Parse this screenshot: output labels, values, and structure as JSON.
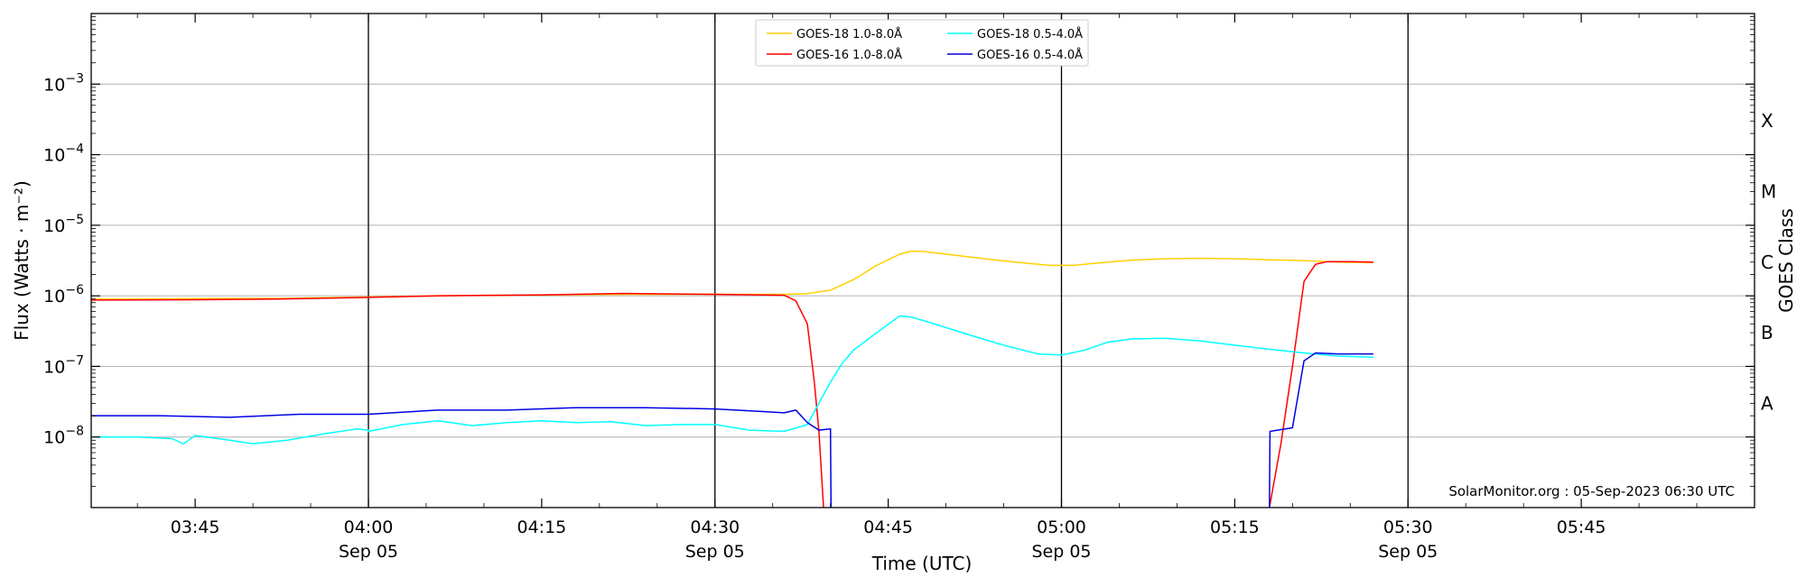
{
  "chart_data": {
    "type": "line",
    "xlabel": "Time (UTC)",
    "ylabel": "Flux (Watts · m⁻²)",
    "right_ylabel": "GOES Class",
    "credit": "SolarMonitor.org : 05-Sep-2023 06:30 UTC",
    "xlim": [
      "2023-09-05 03:36",
      "2023-09-05 06:00"
    ],
    "ylim": [
      1e-09,
      0.01
    ],
    "yscale": "log",
    "grid": "horizontal at decades",
    "legend_position": "top-center",
    "x_ticks": [
      {
        "time": "03:45",
        "label": "03:45",
        "date": ""
      },
      {
        "time": "04:00",
        "label": "04:00",
        "date": "Sep 05"
      },
      {
        "time": "04:15",
        "label": "04:15",
        "date": ""
      },
      {
        "time": "04:30",
        "label": "04:30",
        "date": "Sep 05"
      },
      {
        "time": "04:45",
        "label": "04:45",
        "date": ""
      },
      {
        "time": "05:00",
        "label": "05:00",
        "date": "Sep 05"
      },
      {
        "time": "05:15",
        "label": "05:15",
        "date": ""
      },
      {
        "time": "05:30",
        "label": "05:30",
        "date": "Sep 05"
      },
      {
        "time": "05:45",
        "label": "05:45",
        "date": ""
      }
    ],
    "y_ticks": [
      {
        "value": 1e-08,
        "base": "10",
        "exp": "−8"
      },
      {
        "value": 1e-07,
        "base": "10",
        "exp": "−7"
      },
      {
        "value": 1e-06,
        "base": "10",
        "exp": "−6"
      },
      {
        "value": 1e-05,
        "base": "10",
        "exp": "−5"
      },
      {
        "value": 0.0001,
        "base": "10",
        "exp": "−4"
      },
      {
        "value": 0.001,
        "base": "10",
        "exp": "−3"
      }
    ],
    "vertical_lines": [
      "04:00",
      "04:30",
      "05:00",
      "05:30"
    ],
    "goes_classes": [
      {
        "label": "A",
        "value": 3e-08
      },
      {
        "label": "B",
        "value": 3e-07
      },
      {
        "label": "C",
        "value": 3e-06
      },
      {
        "label": "M",
        "value": 3e-05
      },
      {
        "label": "X",
        "value": 0.0003
      }
    ],
    "series": [
      {
        "name": "GOES-18 1.0-8.0Å",
        "color": "#ffd000",
        "points": [
          [
            "03:36",
            9e-07
          ],
          [
            "03:45",
            9.1e-07
          ],
          [
            "03:52",
            9.2e-07
          ],
          [
            "04:00",
            9.6e-07
          ],
          [
            "04:06",
            1e-06
          ],
          [
            "04:15",
            1.03e-06
          ],
          [
            "04:22",
            1.05e-06
          ],
          [
            "04:30",
            1.05e-06
          ],
          [
            "04:36",
            1.05e-06
          ],
          [
            "04:38",
            1.07e-06
          ],
          [
            "04:40",
            1.2e-06
          ],
          [
            "04:42",
            1.7e-06
          ],
          [
            "04:44",
            2.7e-06
          ],
          [
            "04:46",
            3.9e-06
          ],
          [
            "04:47",
            4.3e-06
          ],
          [
            "04:48",
            4.25e-06
          ],
          [
            "04:50",
            3.9e-06
          ],
          [
            "04:53",
            3.4e-06
          ],
          [
            "04:56",
            3e-06
          ],
          [
            "04:59",
            2.7e-06
          ],
          [
            "05:01",
            2.7e-06
          ],
          [
            "05:03",
            2.9e-06
          ],
          [
            "05:06",
            3.2e-06
          ],
          [
            "05:09",
            3.35e-06
          ],
          [
            "05:12",
            3.4e-06
          ],
          [
            "05:15",
            3.35e-06
          ],
          [
            "05:18",
            3.25e-06
          ],
          [
            "05:21",
            3.15e-06
          ],
          [
            "05:24",
            3e-06
          ],
          [
            "05:27",
            2.95e-06
          ]
        ]
      },
      {
        "name": "GOES-16 1.0-8.0Å",
        "color": "#ff0000",
        "points": [
          [
            "03:36",
            8.7e-07
          ],
          [
            "03:45",
            8.8e-07
          ],
          [
            "03:52",
            9e-07
          ],
          [
            "04:00",
            9.5e-07
          ],
          [
            "04:06",
            1e-06
          ],
          [
            "04:15",
            1.03e-06
          ],
          [
            "04:22",
            1.08e-06
          ],
          [
            "04:30",
            1.05e-06
          ],
          [
            "04:36",
            1.02e-06
          ],
          [
            "04:37",
            8.5e-07
          ],
          [
            "04:38",
            4e-07
          ],
          [
            "04:38.6",
            6e-08
          ],
          [
            "04:39",
            1.2e-08
          ],
          [
            "04:39.4",
            1e-09
          ]
        ],
        "segments_after_gap": [
          [
            "05:18",
            1e-09
          ],
          [
            "05:19",
            8e-09
          ],
          [
            "05:20",
            1e-07
          ],
          [
            "05:21",
            1.6e-06
          ],
          [
            "05:22",
            2.8e-06
          ],
          [
            "05:23",
            3.05e-06
          ],
          [
            "05:25",
            3.05e-06
          ],
          [
            "05:27",
            3e-06
          ]
        ]
      },
      {
        "name": "GOES-18 0.5-4.0Å",
        "color": "#00ffff",
        "points": [
          [
            "03:36",
            1e-08
          ],
          [
            "03:40",
            1e-08
          ],
          [
            "03:43",
            9.5e-09
          ],
          [
            "03:44",
            8e-09
          ],
          [
            "03:45",
            1.05e-08
          ],
          [
            "03:48",
            9e-09
          ],
          [
            "03:50",
            8e-09
          ],
          [
            "03:53",
            9e-09
          ],
          [
            "03:56",
            1.1e-08
          ],
          [
            "03:59",
            1.3e-08
          ],
          [
            "03:60",
            1.25e-08
          ],
          [
            "04:00",
            1.2e-08
          ],
          [
            "04:03",
            1.5e-08
          ],
          [
            "04:06",
            1.7e-08
          ],
          [
            "04:09",
            1.45e-08
          ],
          [
            "04:12",
            1.6e-08
          ],
          [
            "04:15",
            1.7e-08
          ],
          [
            "04:18",
            1.6e-08
          ],
          [
            "04:21",
            1.65e-08
          ],
          [
            "04:24",
            1.45e-08
          ],
          [
            "04:27",
            1.5e-08
          ],
          [
            "04:30",
            1.5e-08
          ],
          [
            "04:33",
            1.25e-08
          ],
          [
            "04:36",
            1.2e-08
          ],
          [
            "04:38",
            1.5e-08
          ],
          [
            "04:39",
            3e-08
          ],
          [
            "04:40",
            6e-08
          ],
          [
            "04:41",
            1.1e-07
          ],
          [
            "04:42",
            1.7e-07
          ],
          [
            "04:44",
            3e-07
          ],
          [
            "04:46",
            5.2e-07
          ],
          [
            "04:47",
            5e-07
          ],
          [
            "04:49",
            4e-07
          ],
          [
            "04:52",
            2.8e-07
          ],
          [
            "04:55",
            2e-07
          ],
          [
            "04:58",
            1.5e-07
          ],
          [
            "05:00",
            1.45e-07
          ],
          [
            "05:02",
            1.7e-07
          ],
          [
            "05:04",
            2.2e-07
          ],
          [
            "05:06",
            2.45e-07
          ],
          [
            "05:09",
            2.5e-07
          ],
          [
            "05:12",
            2.3e-07
          ],
          [
            "05:15",
            2e-07
          ],
          [
            "05:18",
            1.75e-07
          ],
          [
            "05:21",
            1.55e-07
          ],
          [
            "05:24",
            1.4e-07
          ],
          [
            "05:27",
            1.35e-07
          ]
        ]
      },
      {
        "name": "GOES-16 0.5-4.0Å",
        "color": "#0000e6",
        "points": [
          [
            "03:36",
            2e-08
          ],
          [
            "03:42",
            2e-08
          ],
          [
            "03:48",
            1.9e-08
          ],
          [
            "03:54",
            2.1e-08
          ],
          [
            "04:00",
            2.1e-08
          ],
          [
            "04:06",
            2.4e-08
          ],
          [
            "04:12",
            2.4e-08
          ],
          [
            "04:18",
            2.6e-08
          ],
          [
            "04:24",
            2.6e-08
          ],
          [
            "04:30",
            2.5e-08
          ],
          [
            "04:34",
            2.3e-08
          ],
          [
            "04:36",
            2.2e-08
          ],
          [
            "04:37",
            2.4e-08
          ],
          [
            "04:38",
            1.6e-08
          ],
          [
            "04:39",
            1.25e-08
          ],
          [
            "04:40",
            1.3e-08
          ],
          [
            "04:40.05",
            1e-09
          ]
        ],
        "segments_after_gap": [
          [
            "05:18",
            1e-09
          ],
          [
            "05:18.05",
            1.2e-08
          ],
          [
            "05:20",
            1.35e-08
          ],
          [
            "05:21",
            1.2e-07
          ],
          [
            "05:22",
            1.55e-07
          ],
          [
            "05:24",
            1.5e-07
          ],
          [
            "05:27",
            1.5e-07
          ]
        ]
      }
    ]
  }
}
